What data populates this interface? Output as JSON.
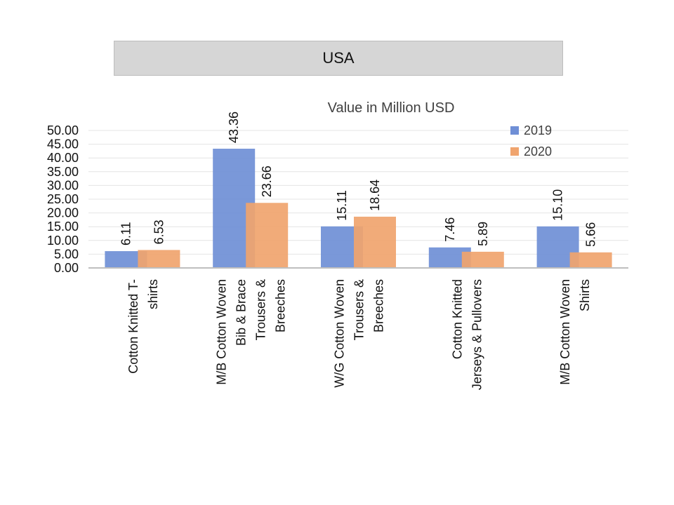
{
  "header": {
    "title": "USA"
  },
  "chart_data": {
    "type": "bar",
    "title": "Value in Million USD",
    "xlabel": "",
    "ylabel": "",
    "ylim": [
      0,
      50
    ],
    "yticks": [
      "0.00",
      "5.00",
      "10.00",
      "15.00",
      "20.00",
      "25.00",
      "30.00",
      "35.00",
      "40.00",
      "45.00",
      "50.00"
    ],
    "categories": [
      [
        "Cotton Knitted  T-",
        "shirts"
      ],
      [
        "M/B Cotton Woven",
        "Bib & Brace",
        "Trousers &",
        "Breeches"
      ],
      [
        "W/G Cotton Woven",
        "Trousers &",
        "Breeches"
      ],
      [
        "Cotton Knitted",
        "Jerseys & Pullovers"
      ],
      [
        "M/B Cotton Woven",
        "Shirts"
      ]
    ],
    "series": [
      {
        "name": "2019",
        "color": "#6f8fd6",
        "values": [
          6.11,
          43.36,
          15.11,
          7.46,
          15.1
        ],
        "labels": [
          "6.11",
          "43.36",
          "15.11",
          "7.46",
          "15.10"
        ]
      },
      {
        "name": "2020",
        "color": "#f0a46e",
        "values": [
          6.53,
          23.66,
          18.64,
          5.89,
          5.66
        ],
        "labels": [
          "6.53",
          "23.66",
          "18.64",
          "5.89",
          "5.66"
        ]
      }
    ],
    "grid": true,
    "legend": "top-right"
  }
}
